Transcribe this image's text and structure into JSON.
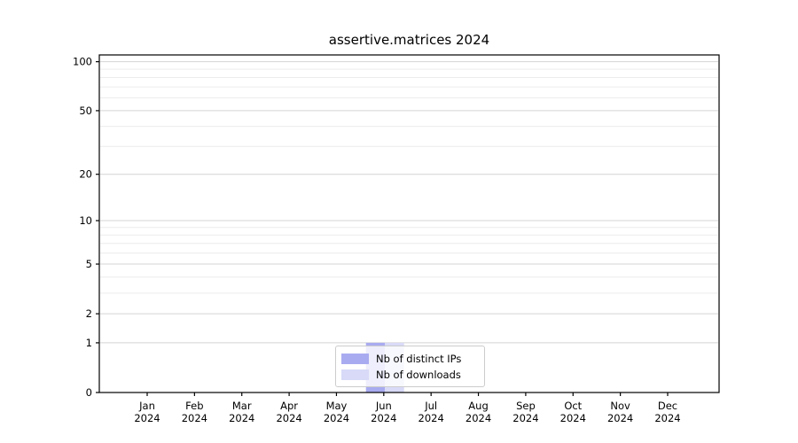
{
  "chart_data": {
    "type": "bar",
    "title": "assertive.matrices 2024",
    "categories": [
      {
        "month": "Jan",
        "year": "2024"
      },
      {
        "month": "Feb",
        "year": "2024"
      },
      {
        "month": "Mar",
        "year": "2024"
      },
      {
        "month": "Apr",
        "year": "2024"
      },
      {
        "month": "May",
        "year": "2024"
      },
      {
        "month": "Jun",
        "year": "2024"
      },
      {
        "month": "Jul",
        "year": "2024"
      },
      {
        "month": "Aug",
        "year": "2024"
      },
      {
        "month": "Sep",
        "year": "2024"
      },
      {
        "month": "Oct",
        "year": "2024"
      },
      {
        "month": "Nov",
        "year": "2024"
      },
      {
        "month": "Dec",
        "year": "2024"
      }
    ],
    "series": [
      {
        "name": "Nb of distinct IPs",
        "color": "#a9abf0",
        "values": [
          0,
          0,
          0,
          0,
          0,
          1,
          0,
          0,
          0,
          0,
          0,
          0
        ]
      },
      {
        "name": "Nb of downloads",
        "color": "#d8daf7",
        "values": [
          0,
          0,
          0,
          0,
          0,
          1,
          0,
          0,
          0,
          0,
          0,
          0
        ]
      }
    ],
    "y_axis": {
      "scale": "log1p",
      "ticks": [
        0,
        1,
        2,
        5,
        10,
        20,
        50,
        100
      ],
      "minor_ticks": [
        3,
        4,
        6,
        7,
        8,
        9,
        30,
        40,
        60,
        70,
        80,
        90
      ],
      "ylim": [
        0,
        110
      ]
    },
    "x_axis": {
      "tick_count": 12
    },
    "legend": {
      "position": "lower center"
    },
    "grid": true
  },
  "colors": {
    "background": "#ffffff",
    "grid_major": "#d4d4d4",
    "grid_minor": "#ececec",
    "spine": "#000000",
    "text": "#000000",
    "legend_border": "#cccccc"
  }
}
